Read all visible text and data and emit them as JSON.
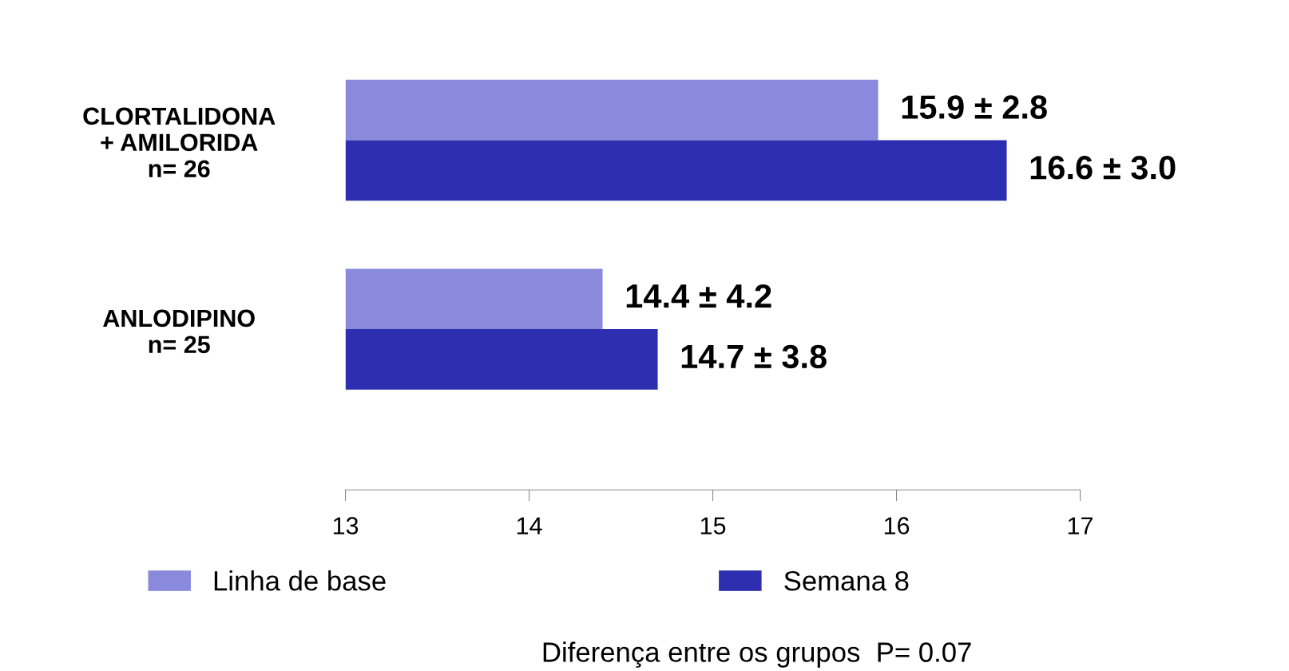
{
  "chart_data": {
    "type": "bar",
    "orientation": "horizontal",
    "categories": [
      "CLORTALIDONA\n+ AMILORIDA\nn= 26",
      "ANLODIPINO\nn= 25"
    ],
    "series": [
      {
        "name": "Linha de base",
        "color": "#8a8adc",
        "values": [
          15.9,
          14.4
        ],
        "value_labels": [
          "15.9 ± 2.8",
          "14.4 ± 4.2"
        ]
      },
      {
        "name": "Semana 8",
        "color": "#2e2eb0",
        "values": [
          16.6,
          14.7
        ],
        "value_labels": [
          "16.6 ± 3.0",
          "14.7 ± 3.8"
        ]
      }
    ],
    "xlim": [
      13,
      17
    ],
    "xticks": [
      13,
      14,
      15,
      16,
      17
    ],
    "grid": false,
    "legend": "bottom",
    "annotations": [
      "Diferença entre os grupos  P= 0.07"
    ]
  }
}
